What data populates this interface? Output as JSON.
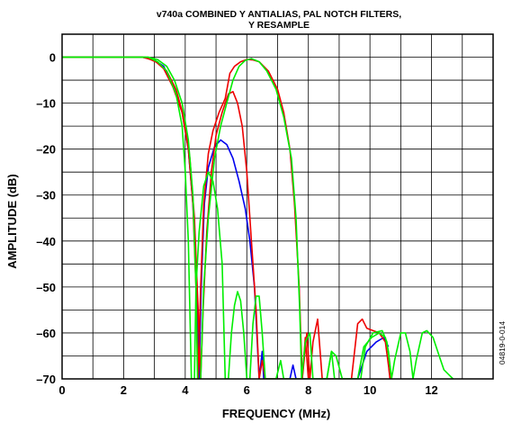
{
  "chart_data": {
    "type": "line",
    "title": [
      "v740a COMBINED Y ANTIALIAS, PAL NOTCH FILTERS,",
      "Y RESAMPLE"
    ],
    "xlabel": "FREQUENCY (MHz)",
    "ylabel": "AMPLITUDE (dB)",
    "xlim": [
      0,
      14
    ],
    "ylim": [
      -70,
      5
    ],
    "xticks": [
      0,
      2,
      4,
      6,
      8,
      10,
      12
    ],
    "yticks": [
      0,
      -10,
      -20,
      -30,
      -40,
      -50,
      -60,
      -70
    ],
    "xtick_labels": [
      "0",
      "2",
      "4",
      "6",
      "8",
      "10",
      "12"
    ],
    "ytick_labels": [
      "0",
      "–10",
      "–20",
      "–30",
      "–40",
      "–50",
      "–60",
      "–70"
    ],
    "grid": true,
    "figure_id": "04819-0-014",
    "series": [
      {
        "color": "#0000ee",
        "points": [
          [
            0,
            0
          ],
          [
            2,
            0
          ],
          [
            2.6,
            0
          ],
          [
            3,
            -0.6
          ],
          [
            3.3,
            -2
          ],
          [
            3.6,
            -6
          ],
          [
            3.9,
            -12
          ],
          [
            4.1,
            -20
          ],
          [
            4.25,
            -32
          ],
          [
            4.38,
            -50
          ],
          [
            4.45,
            -70
          ],
          [
            4.52,
            -50
          ],
          [
            4.62,
            -32
          ],
          [
            4.75,
            -24
          ],
          [
            4.95,
            -19.5
          ],
          [
            5.15,
            -18
          ],
          [
            5.35,
            -19
          ],
          [
            5.55,
            -22
          ],
          [
            5.75,
            -27
          ],
          [
            5.95,
            -33
          ],
          [
            6.1,
            -40
          ],
          [
            6.25,
            -50
          ],
          [
            6.4,
            -70
          ],
          [
            6.5,
            -64
          ],
          [
            6.55,
            -70
          ],
          [
            7.4,
            -70
          ],
          [
            7.5,
            -67
          ],
          [
            7.6,
            -70
          ],
          [
            9.6,
            -70
          ],
          [
            9.9,
            -64
          ],
          [
            10.2,
            -62
          ],
          [
            10.45,
            -61
          ],
          [
            10.6,
            -63
          ]
        ]
      },
      {
        "color": "#ee0000",
        "points": [
          [
            0,
            0
          ],
          [
            2,
            0
          ],
          [
            2.6,
            0
          ],
          [
            3,
            -0.7
          ],
          [
            3.3,
            -2.5
          ],
          [
            3.6,
            -6.5
          ],
          [
            3.9,
            -12
          ],
          [
            4.1,
            -20
          ],
          [
            4.25,
            -32
          ],
          [
            4.35,
            -50
          ],
          [
            4.42,
            -70
          ],
          [
            4.5,
            -50
          ],
          [
            4.6,
            -32
          ],
          [
            4.75,
            -21
          ],
          [
            4.9,
            -16
          ],
          [
            5.1,
            -12
          ],
          [
            5.3,
            -9
          ],
          [
            5.45,
            -3.5
          ],
          [
            5.6,
            -2
          ],
          [
            5.8,
            -1
          ],
          [
            6,
            -0.5
          ],
          [
            6.2,
            -0.6
          ],
          [
            6.4,
            -1
          ],
          [
            6.7,
            -3
          ],
          [
            7,
            -7
          ],
          [
            7.2,
            -12
          ],
          [
            7.4,
            -20
          ],
          [
            7.55,
            -32
          ],
          [
            7.7,
            -50
          ],
          [
            7.8,
            -70
          ],
          [
            7.95,
            -60
          ],
          [
            8.05,
            -70
          ],
          [
            8.15,
            -62
          ],
          [
            8.3,
            -57
          ],
          [
            8.45,
            -70
          ],
          [
            9.4,
            -70
          ],
          [
            9.6,
            -58
          ],
          [
            9.75,
            -57
          ],
          [
            9.9,
            -59
          ],
          [
            10.1,
            -59.5
          ],
          [
            10.3,
            -60
          ],
          [
            10.5,
            -62
          ],
          [
            10.6,
            -67
          ],
          [
            10.65,
            -70
          ]
        ]
      },
      {
        "color": "#ee0000",
        "points": [
          [
            0,
            0
          ],
          [
            2,
            0
          ],
          [
            2.7,
            0
          ],
          [
            3.1,
            -1.2
          ],
          [
            3.4,
            -3
          ],
          [
            3.7,
            -7
          ],
          [
            3.95,
            -13
          ],
          [
            4.15,
            -22
          ],
          [
            4.3,
            -35
          ],
          [
            4.42,
            -55
          ],
          [
            4.5,
            -70
          ],
          [
            4.58,
            -55
          ],
          [
            4.7,
            -38
          ],
          [
            4.85,
            -25
          ],
          [
            5,
            -17
          ],
          [
            5.2,
            -12
          ],
          [
            5.4,
            -8
          ],
          [
            5.55,
            -7.5
          ],
          [
            5.7,
            -10
          ],
          [
            5.85,
            -15
          ],
          [
            6,
            -25
          ],
          [
            6.15,
            -40
          ],
          [
            6.3,
            -55
          ],
          [
            6.4,
            -70
          ],
          [
            6.5,
            -66
          ],
          [
            6.6,
            -70
          ],
          [
            7.8,
            -70
          ],
          [
            7.9,
            -61
          ],
          [
            8,
            -70
          ]
        ]
      },
      {
        "color": "#00ee00",
        "points": [
          [
            0,
            0
          ],
          [
            2,
            0
          ],
          [
            2.8,
            0
          ],
          [
            3.1,
            -1
          ],
          [
            3.4,
            -3
          ],
          [
            3.7,
            -8
          ],
          [
            3.9,
            -15
          ],
          [
            4,
            -25
          ],
          [
            4.1,
            -40
          ],
          [
            4.15,
            -55
          ],
          [
            4.2,
            -70
          ],
          [
            4.3,
            -70
          ],
          [
            4.35,
            -50
          ],
          [
            4.45,
            -38
          ],
          [
            4.6,
            -28
          ],
          [
            4.75,
            -25
          ],
          [
            4.9,
            -27
          ],
          [
            5.05,
            -33
          ],
          [
            5.2,
            -45
          ],
          [
            5.3,
            -70
          ],
          [
            5.4,
            -70
          ],
          [
            5.5,
            -60
          ],
          [
            5.6,
            -54
          ],
          [
            5.7,
            -51
          ],
          [
            5.8,
            -53
          ],
          [
            5.9,
            -60
          ],
          [
            6,
            -70
          ],
          [
            6.1,
            -70
          ],
          [
            6.2,
            -58
          ],
          [
            6.3,
            -52
          ],
          [
            6.4,
            -52
          ],
          [
            6.5,
            -60
          ],
          [
            6.6,
            -70
          ],
          [
            6.95,
            -70
          ],
          [
            7.1,
            -66
          ],
          [
            7.2,
            -70
          ],
          [
            8.6,
            -70
          ],
          [
            8.75,
            -64
          ],
          [
            8.9,
            -65
          ],
          [
            9.1,
            -70
          ],
          [
            9.6,
            -70
          ],
          [
            9.8,
            -63
          ],
          [
            10.05,
            -61
          ],
          [
            10.3,
            -60
          ],
          [
            10.5,
            -61
          ],
          [
            10.6,
            -64
          ],
          [
            10.7,
            -70
          ],
          [
            10.8,
            -66
          ],
          [
            11,
            -60
          ],
          [
            11.15,
            -60
          ],
          [
            11.3,
            -64
          ],
          [
            11.4,
            -70
          ],
          [
            11.5,
            -66
          ],
          [
            11.7,
            -60
          ],
          [
            11.85,
            -59.5
          ],
          [
            12.05,
            -61
          ],
          [
            12.25,
            -65
          ],
          [
            12.4,
            -68
          ],
          [
            12.55,
            -69
          ],
          [
            12.7,
            -70
          ]
        ]
      },
      {
        "color": "#00ee00",
        "points": [
          [
            0,
            0
          ],
          [
            2,
            0
          ],
          [
            2.8,
            0
          ],
          [
            3.1,
            -0.5
          ],
          [
            3.4,
            -2
          ],
          [
            3.65,
            -5
          ],
          [
            3.9,
            -10
          ],
          [
            4.1,
            -18
          ],
          [
            4.25,
            -30
          ],
          [
            4.35,
            -50
          ],
          [
            4.4,
            -70
          ],
          [
            4.5,
            -70
          ],
          [
            4.6,
            -50
          ],
          [
            4.75,
            -35
          ],
          [
            4.95,
            -22
          ],
          [
            5.15,
            -15
          ],
          [
            5.35,
            -10
          ],
          [
            5.55,
            -5
          ],
          [
            5.75,
            -2
          ],
          [
            5.95,
            -0.7
          ],
          [
            6.15,
            -0.3
          ],
          [
            6.4,
            -1
          ],
          [
            6.65,
            -3
          ],
          [
            6.95,
            -7
          ],
          [
            7.2,
            -13
          ],
          [
            7.45,
            -22
          ],
          [
            7.6,
            -35
          ],
          [
            7.72,
            -55
          ],
          [
            7.78,
            -70
          ],
          [
            7.9,
            -62
          ],
          [
            8.05,
            -60
          ],
          [
            8.15,
            -70
          ],
          [
            8.6,
            -70
          ],
          [
            8.75,
            -64
          ],
          [
            8.85,
            -70
          ],
          [
            9.7,
            -70
          ],
          [
            9.85,
            -63
          ],
          [
            10.1,
            -60
          ],
          [
            10.4,
            -59.5
          ],
          [
            10.55,
            -62
          ],
          [
            10.7,
            -70
          ]
        ]
      }
    ]
  }
}
